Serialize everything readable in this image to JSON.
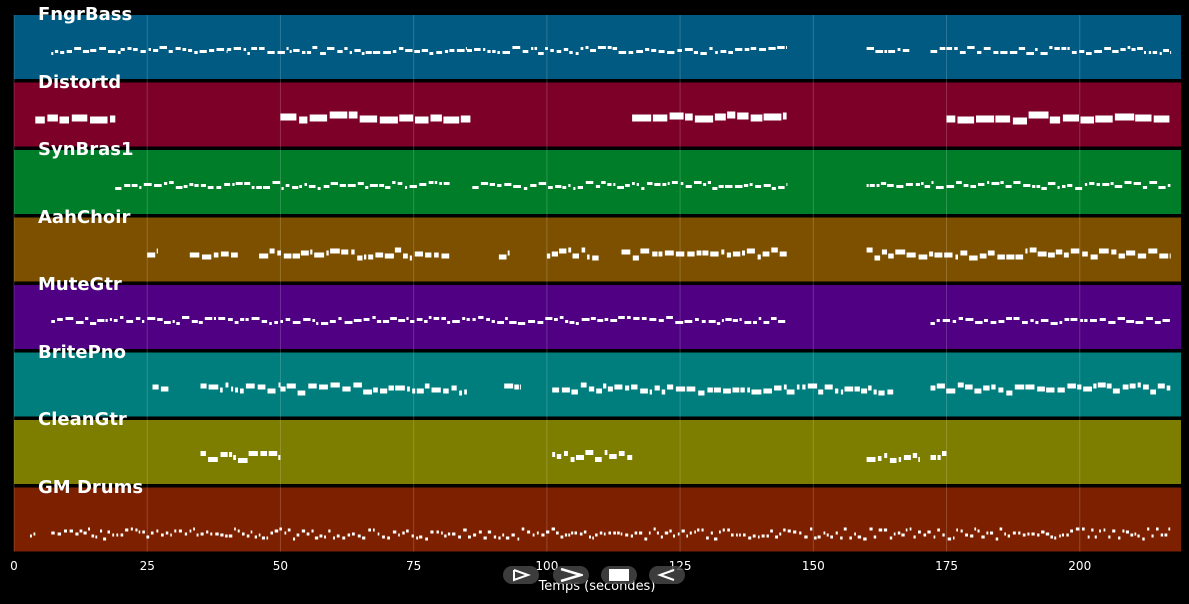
{
  "tracks": [
    {
      "name": "FngrBass",
      "color": "#005a82",
      "style": "thin",
      "segments": [
        [
          7,
          20
        ],
        [
          20,
          40
        ],
        [
          40,
          85
        ],
        [
          85,
          145
        ],
        [
          160,
          168
        ],
        [
          172,
          217
        ]
      ]
    },
    {
      "name": "Distortd",
      "color": "#7d0028",
      "style": "thick",
      "segments": [
        [
          4,
          19
        ],
        [
          50,
          86
        ],
        [
          116,
          145
        ],
        [
          175,
          217
        ]
      ]
    },
    {
      "name": "SynBras1",
      "color": "#007d28",
      "style": "thin",
      "segments": [
        [
          19,
          82
        ],
        [
          86,
          145
        ],
        [
          160,
          217
        ]
      ]
    },
    {
      "name": "AahChoir",
      "color": "#7d5000",
      "style": "medium",
      "segments": [
        [
          25,
          27
        ],
        [
          33,
          42
        ],
        [
          46,
          82
        ],
        [
          91,
          93
        ],
        [
          100,
          110
        ],
        [
          114,
          145
        ],
        [
          160,
          217
        ]
      ]
    },
    {
      "name": "MuteGtr",
      "color": "#500082",
      "style": "thin",
      "segments": [
        [
          7,
          50
        ],
        [
          50,
          145
        ],
        [
          172,
          217
        ]
      ]
    },
    {
      "name": "BritePno",
      "color": "#007d7d",
      "style": "medium",
      "segments": [
        [
          26,
          29
        ],
        [
          35,
          50
        ],
        [
          50,
          85
        ],
        [
          92,
          95
        ],
        [
          101,
          145
        ],
        [
          145,
          165
        ],
        [
          172,
          217
        ]
      ]
    },
    {
      "name": "CleanGtr",
      "color": "#7d7d00",
      "style": "medium",
      "segments": [
        [
          35,
          50
        ],
        [
          101,
          116
        ],
        [
          160,
          170
        ],
        [
          172,
          175
        ]
      ]
    },
    {
      "name": "GM Drums",
      "color": "#7d2000",
      "style": "drums",
      "segments": [
        [
          3,
          4
        ],
        [
          7,
          217
        ]
      ]
    }
  ],
  "axis": {
    "xmin": 0,
    "xmax": 219,
    "ticks": [
      0,
      25,
      50,
      75,
      100,
      125,
      150,
      175,
      200
    ],
    "tick_labels": [
      "0",
      "25",
      "50",
      "75",
      "100",
      "125",
      "150",
      "175",
      "200"
    ],
    "xlabel": "Temps (secondes)"
  },
  "controls": [
    {
      "name": "rewind",
      "icon": "rewind-icon"
    },
    {
      "name": "play",
      "icon": "play-icon"
    },
    {
      "name": "stop",
      "icon": "stop-icon"
    },
    {
      "name": "forward",
      "icon": "forward-icon"
    }
  ]
}
